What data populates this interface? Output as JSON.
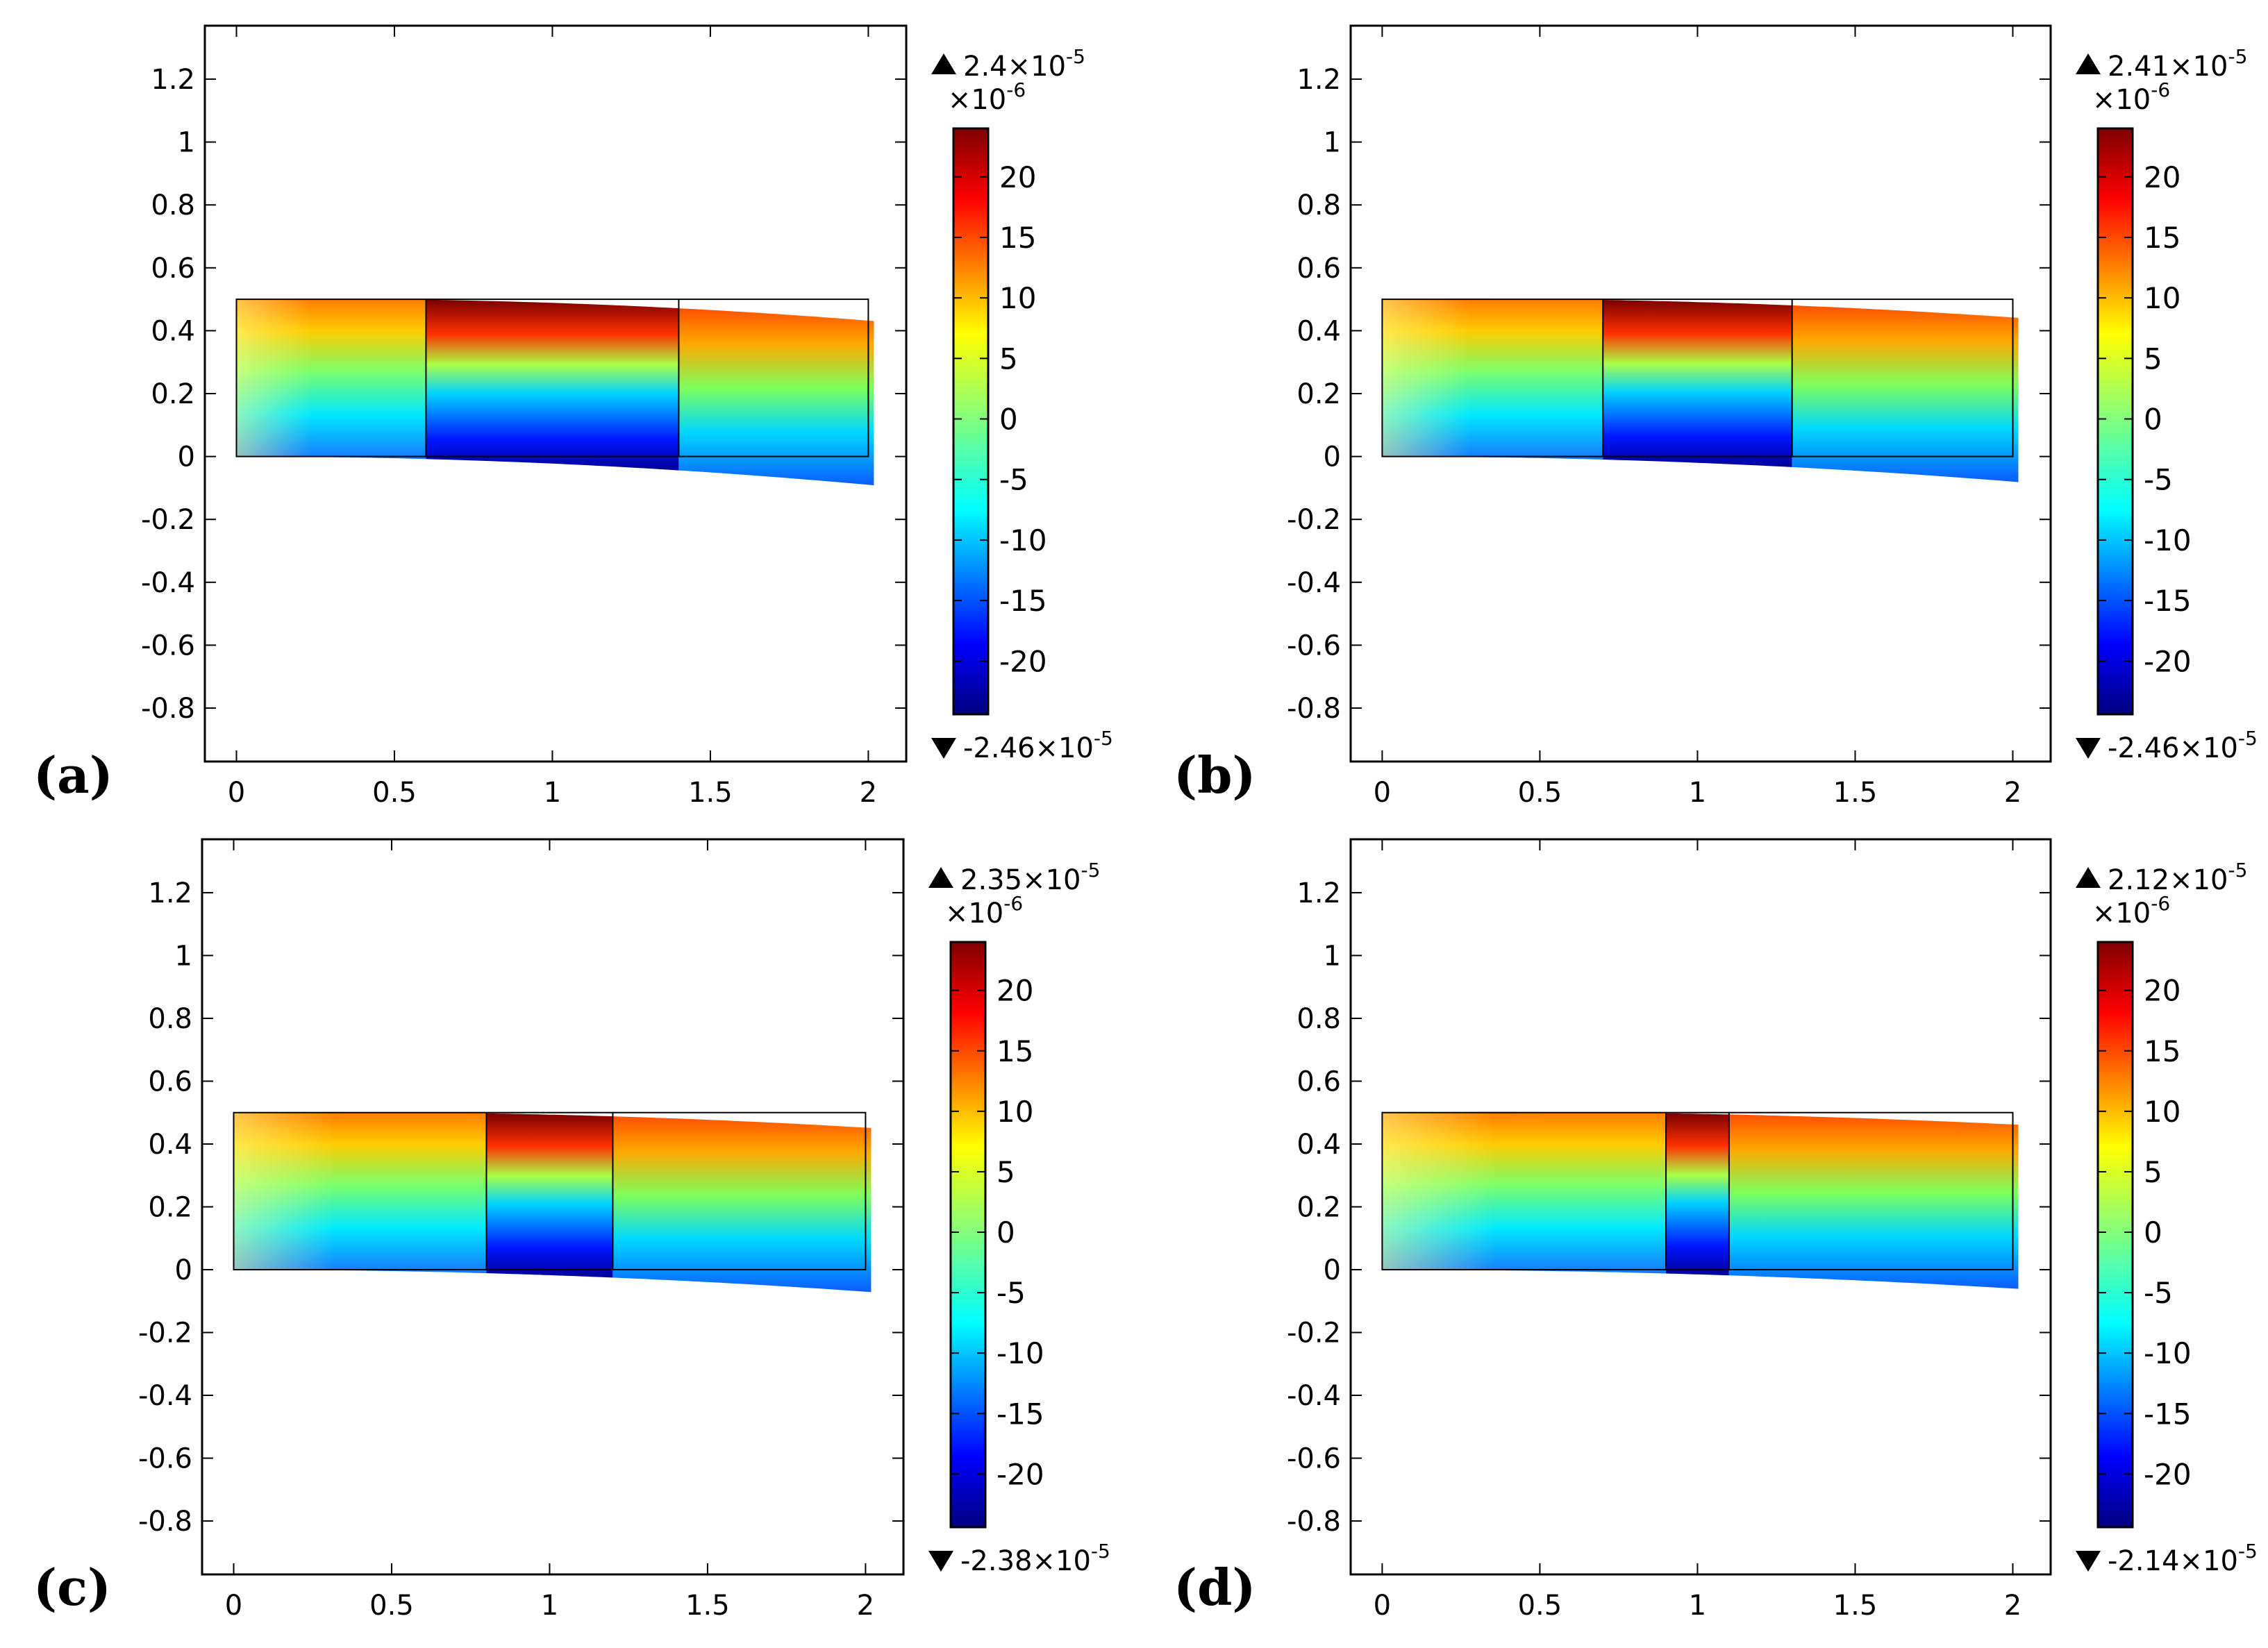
{
  "chart_data": [
    {
      "type": "heatmap",
      "panel": "(a)",
      "xlim": [
        -0.1,
        2.12
      ],
      "ylim": [
        -0.97,
        1.37
      ],
      "xticks": [
        "0",
        "0.5",
        "1",
        "1.5",
        "2"
      ],
      "yticks": [
        "1.2",
        "1",
        "0.8",
        "0.6",
        "0.4",
        "0.2",
        "0",
        "-0.2",
        "-0.4",
        "-0.6",
        "-0.8"
      ],
      "undeformed_domain": {
        "x": [
          0,
          2
        ],
        "y": [
          0,
          0.5
        ]
      },
      "patch_x": [
        0.6,
        1.4
      ],
      "tip_deflection": 0.09,
      "colorbar": {
        "unit": "×10",
        "unit_exp": "-6",
        "ticks": [
          "20",
          "15",
          "10",
          "5",
          "0",
          "-5",
          "-10",
          "-15",
          "-20"
        ],
        "max": "2.4×10",
        "max_exp": "-5",
        "min": "-2.46×10",
        "min_exp": "-5"
      }
    },
    {
      "type": "heatmap",
      "panel": "(b)",
      "xlim": [
        -0.1,
        2.12
      ],
      "ylim": [
        -0.97,
        1.37
      ],
      "xticks": [
        "0",
        "0.5",
        "1",
        "1.5",
        "2"
      ],
      "yticks": [
        "1.2",
        "1",
        "0.8",
        "0.6",
        "0.4",
        "0.2",
        "0",
        "-0.2",
        "-0.4",
        "-0.6",
        "-0.8"
      ],
      "undeformed_domain": {
        "x": [
          0,
          2
        ],
        "y": [
          0,
          0.5
        ]
      },
      "patch_x": [
        0.7,
        1.3
      ],
      "tip_deflection": 0.08,
      "colorbar": {
        "unit": "×10",
        "unit_exp": "-6",
        "ticks": [
          "20",
          "15",
          "10",
          "5",
          "0",
          "-5",
          "-10",
          "-15",
          "-20"
        ],
        "max": "2.41×10",
        "max_exp": "-5",
        "min": "-2.46×10",
        "min_exp": "-5"
      }
    },
    {
      "type": "heatmap",
      "panel": "(c)",
      "xlim": [
        -0.1,
        2.12
      ],
      "ylim": [
        -0.97,
        1.37
      ],
      "xticks": [
        "0",
        "0.5",
        "1",
        "1.5",
        "2"
      ],
      "yticks": [
        "1.2",
        "1",
        "0.8",
        "0.6",
        "0.4",
        "0.2",
        "0",
        "-0.2",
        "-0.4",
        "-0.6",
        "-0.8"
      ],
      "undeformed_domain": {
        "x": [
          0,
          2
        ],
        "y": [
          0,
          0.5
        ]
      },
      "patch_x": [
        0.8,
        1.2
      ],
      "tip_deflection": 0.07,
      "colorbar": {
        "unit": "×10",
        "unit_exp": "-6",
        "ticks": [
          "20",
          "15",
          "10",
          "5",
          "0",
          "-5",
          "-10",
          "-15",
          "-20"
        ],
        "max": "2.35×10",
        "max_exp": "-5",
        "min": "-2.38×10",
        "min_exp": "-5"
      }
    },
    {
      "type": "heatmap",
      "panel": "(d)",
      "xlim": [
        -0.1,
        2.12
      ],
      "ylim": [
        -0.97,
        1.37
      ],
      "xticks": [
        "0",
        "0.5",
        "1",
        "1.5",
        "2"
      ],
      "yticks": [
        "1.2",
        "1",
        "0.8",
        "0.6",
        "0.4",
        "0.2",
        "0",
        "-0.2",
        "-0.4",
        "-0.6",
        "-0.8"
      ],
      "undeformed_domain": {
        "x": [
          0,
          2
        ],
        "y": [
          0,
          0.5
        ]
      },
      "patch_x": [
        0.9,
        1.1
      ],
      "tip_deflection": 0.06,
      "colorbar": {
        "unit": "×10",
        "unit_exp": "-6",
        "ticks": [
          "20",
          "15",
          "10",
          "5",
          "0",
          "-5",
          "-10",
          "-15",
          "-20"
        ],
        "max": "2.12×10",
        "max_exp": "-5",
        "min": "-2.14×10",
        "min_exp": "-5"
      }
    }
  ]
}
